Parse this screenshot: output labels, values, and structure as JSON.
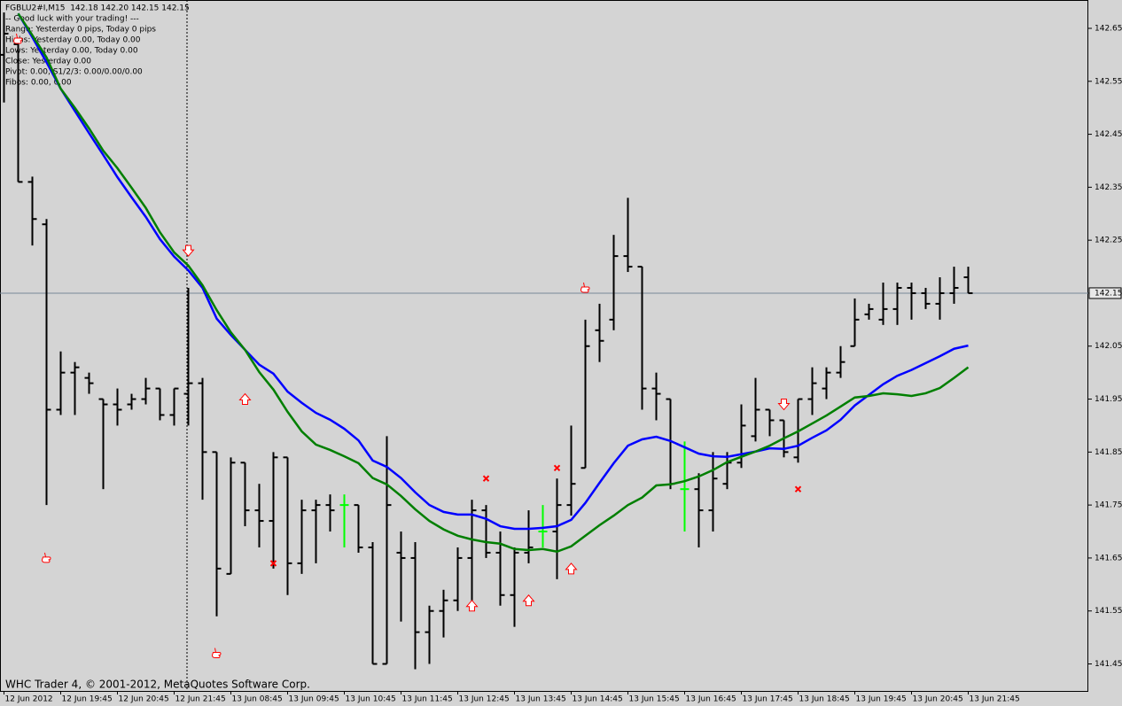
{
  "info_lines": [
    "FGBLU2#I,M15  142.18 142.20 142.15 142.15",
    "-- Good luck with your trading! ---",
    "Range: Yesterday 0 pips, Today 0 pips",
    "Highs: Yesterday 0.00, Today 0.00",
    "Lows: Yesterday 0.00, Today 0.00",
    "Close: Yesterday 0.00",
    "Pivot: 0.00, S1/2/3: 0.00/0.00/0.00",
    "Fibos: 0.00, 0.00"
  ],
  "footer": "WHC Trader 4, © 2001-2012, MetaQuotes Software Corp.",
  "chart_data": {
    "type": "ohlc",
    "categories": [
      "12 Jun 2012",
      null,
      null,
      null,
      "12 Jun 19:45",
      null,
      null,
      null,
      "12 Jun 20:45",
      null,
      null,
      null,
      "12 Jun 21:45",
      null,
      null,
      null,
      "13 Jun 08:45",
      null,
      null,
      null,
      "13 Jun 09:45",
      null,
      null,
      null,
      "13 Jun 10:45",
      null,
      null,
      null,
      "13 Jun 11:45",
      null,
      null,
      null,
      "13 Jun 12:45",
      null,
      null,
      null,
      "13 Jun 13:45",
      null,
      null,
      null,
      "13 Jun 14:45",
      null,
      null,
      null,
      "13 Jun 15:45",
      null,
      null,
      null,
      "13 Jun 16:45",
      null,
      null,
      null,
      "13 Jun 17:45",
      null,
      null,
      null,
      "13 Jun 18:45",
      null,
      null,
      null,
      "13 Jun 19:45",
      null,
      null,
      null,
      "13 Jun 20:45",
      null,
      null,
      null,
      "13 Jun 21:45"
    ],
    "open": [
      142.6,
      142.62,
      142.36,
      142.28,
      141.93,
      142.0,
      141.99,
      141.95,
      141.94,
      141.94,
      141.95,
      141.97,
      141.92,
      141.96,
      141.98,
      141.85,
      141.62,
      141.83,
      141.74,
      141.72,
      141.84,
      141.64,
      141.74,
      141.75,
      141.75,
      141.75,
      141.67,
      141.45,
      141.66,
      141.65,
      141.51,
      141.55,
      141.57,
      141.65,
      141.74,
      141.66,
      141.58,
      141.66,
      141.7,
      141.7,
      141.75,
      141.82,
      142.08,
      142.1,
      142.22,
      142.2,
      141.97,
      141.95,
      141.78,
      141.78,
      141.74,
      141.79,
      141.83,
      141.88,
      141.93,
      141.91,
      141.84,
      141.95,
      141.97,
      142.0,
      142.05,
      142.11,
      142.1,
      142.12,
      142.16,
      142.15,
      142.13,
      142.15,
      142.18
    ],
    "high": [
      142.68,
      142.63,
      142.37,
      142.29,
      142.04,
      142.02,
      142.0,
      141.95,
      141.97,
      141.96,
      141.99,
      141.97,
      141.97,
      142.16,
      141.99,
      141.85,
      141.84,
      141.83,
      141.79,
      141.85,
      141.84,
      141.76,
      141.76,
      141.77,
      141.77,
      141.75,
      141.68,
      141.88,
      141.7,
      141.68,
      141.56,
      141.59,
      141.67,
      141.76,
      141.75,
      141.7,
      141.67,
      141.74,
      141.75,
      141.8,
      141.9,
      142.1,
      142.13,
      142.26,
      142.33,
      142.2,
      142.0,
      141.95,
      141.87,
      141.81,
      141.85,
      141.85,
      141.94,
      141.99,
      141.93,
      141.91,
      141.95,
      142.01,
      142.01,
      142.05,
      142.14,
      142.13,
      142.17,
      142.17,
      142.17,
      142.16,
      142.18,
      142.2,
      142.2
    ],
    "low": [
      142.51,
      142.36,
      142.24,
      141.75,
      141.92,
      141.92,
      141.96,
      141.78,
      141.9,
      141.93,
      141.94,
      141.91,
      141.9,
      141.9,
      141.76,
      141.54,
      141.62,
      141.71,
      141.67,
      141.63,
      141.58,
      141.62,
      141.64,
      141.7,
      141.67,
      141.66,
      141.45,
      141.45,
      141.53,
      141.44,
      141.45,
      141.5,
      141.55,
      141.55,
      141.65,
      141.56,
      141.52,
      141.64,
      141.67,
      141.61,
      141.73,
      141.82,
      142.02,
      142.08,
      142.19,
      141.93,
      141.91,
      141.78,
      141.7,
      141.67,
      141.7,
      141.78,
      141.82,
      141.87,
      141.88,
      141.84,
      141.83,
      141.92,
      141.95,
      141.99,
      142.05,
      142.1,
      142.09,
      142.09,
      142.1,
      142.12,
      142.1,
      142.13,
      142.15
    ],
    "close": [
      142.64,
      142.36,
      142.29,
      141.93,
      142.0,
      142.01,
      141.98,
      141.94,
      141.93,
      141.95,
      141.97,
      141.92,
      141.97,
      141.98,
      141.85,
      141.63,
      141.83,
      141.74,
      141.72,
      141.84,
      141.64,
      141.74,
      141.75,
      141.74,
      141.75,
      141.67,
      141.45,
      141.75,
      141.65,
      141.51,
      141.55,
      141.57,
      141.65,
      141.74,
      141.66,
      141.58,
      141.66,
      141.67,
      141.7,
      141.75,
      141.79,
      142.05,
      142.06,
      142.22,
      142.2,
      141.97,
      141.96,
      141.79,
      141.78,
      141.74,
      141.8,
      141.83,
      141.9,
      141.93,
      141.91,
      141.85,
      141.95,
      141.98,
      142.0,
      142.02,
      142.1,
      142.12,
      142.12,
      142.16,
      142.15,
      142.13,
      142.15,
      142.16,
      142.15
    ],
    "bar_color": "#000000",
    "doji_color": "#00ff00",
    "series": [
      {
        "color": "#0000ff",
        "values": [
          null,
          142.678,
          142.633,
          142.586,
          142.536,
          142.494,
          142.452,
          142.411,
          142.369,
          142.331,
          142.294,
          142.252,
          142.219,
          142.193,
          142.16,
          142.102,
          142.071,
          142.043,
          142.015,
          141.998,
          141.964,
          141.943,
          141.924,
          141.911,
          141.894,
          141.872,
          141.834,
          141.822,
          141.801,
          141.774,
          141.75,
          141.737,
          141.732,
          141.732,
          141.724,
          141.71,
          141.705,
          141.705,
          141.707,
          141.71,
          141.722,
          141.754,
          141.792,
          141.829,
          141.862,
          141.874,
          141.879,
          141.871,
          141.859,
          141.847,
          141.842,
          141.841,
          141.846,
          141.851,
          141.857,
          141.856,
          141.862,
          141.877,
          141.891,
          141.911,
          141.938,
          141.958,
          141.978,
          141.994,
          142.005,
          142.018,
          142.031,
          142.045,
          142.051
        ]
      },
      {
        "color": "#007f00",
        "values": [
          null,
          142.678,
          142.637,
          142.595,
          142.536,
          142.5,
          142.461,
          142.419,
          142.386,
          142.349,
          142.311,
          142.265,
          142.227,
          142.202,
          142.165,
          142.118,
          142.076,
          142.043,
          142.001,
          141.968,
          141.926,
          141.889,
          141.864,
          141.854,
          141.842,
          141.829,
          141.801,
          141.789,
          141.767,
          141.742,
          141.72,
          141.704,
          141.692,
          141.685,
          141.68,
          141.677,
          141.667,
          141.665,
          141.667,
          141.662,
          141.672,
          141.692,
          141.712,
          141.73,
          141.75,
          141.764,
          141.787,
          141.789,
          141.795,
          141.804,
          141.816,
          141.831,
          141.841,
          141.851,
          141.862,
          141.876,
          141.889,
          141.904,
          141.919,
          141.936,
          141.953,
          141.956,
          141.961,
          141.959,
          141.956,
          141.961,
          141.971,
          141.99,
          142.01
        ]
      }
    ],
    "markers": [
      {
        "kind": "arrow-down",
        "color": "#ff0000",
        "values": [
          null,
          null,
          null,
          null,
          null,
          null,
          null,
          null,
          null,
          null,
          null,
          null,
          null,
          142.23,
          null,
          null,
          null,
          null,
          null,
          null,
          null,
          null,
          null,
          null,
          null,
          null,
          null,
          null,
          null,
          null,
          null,
          null,
          null,
          null,
          null,
          null,
          null,
          null,
          null,
          null,
          null,
          null,
          null,
          null,
          null,
          null,
          null,
          null,
          null,
          null,
          null,
          null,
          null,
          null,
          null,
          141.94,
          null,
          null,
          null,
          null,
          null,
          null,
          null,
          null,
          null,
          null,
          null,
          null,
          null
        ]
      },
      {
        "kind": "arrow-up",
        "color": "#ff0000",
        "values": [
          null,
          null,
          null,
          null,
          null,
          null,
          null,
          null,
          null,
          null,
          null,
          null,
          null,
          null,
          null,
          null,
          null,
          141.95,
          null,
          null,
          null,
          null,
          null,
          null,
          null,
          null,
          null,
          null,
          null,
          null,
          null,
          null,
          null,
          141.56,
          null,
          null,
          null,
          141.57,
          null,
          null,
          141.63,
          null,
          null,
          null,
          null,
          null,
          null,
          null,
          null,
          null,
          null,
          null,
          null,
          null,
          null,
          null,
          null,
          null,
          null,
          null,
          null,
          null,
          null,
          null,
          null,
          null,
          null,
          null,
          null
        ]
      },
      {
        "kind": "cross",
        "color": "#ff0000",
        "values": [
          null,
          null,
          null,
          null,
          null,
          null,
          null,
          null,
          null,
          null,
          null,
          null,
          null,
          null,
          null,
          null,
          null,
          null,
          null,
          141.64,
          null,
          null,
          null,
          null,
          null,
          null,
          null,
          null,
          null,
          null,
          null,
          null,
          null,
          null,
          141.8,
          null,
          null,
          null,
          null,
          141.82,
          null,
          null,
          null,
          null,
          null,
          null,
          null,
          null,
          null,
          null,
          null,
          null,
          null,
          null,
          null,
          null,
          141.78,
          null,
          null,
          null,
          null,
          null,
          null,
          null,
          null,
          null,
          null,
          null,
          null
        ]
      },
      {
        "kind": "hand",
        "color": "#ff0000",
        "values": [
          null,
          142.63,
          null,
          141.65,
          null,
          null,
          null,
          null,
          null,
          null,
          null,
          null,
          null,
          null,
          null,
          141.47,
          null,
          null,
          null,
          null,
          null,
          null,
          null,
          null,
          null,
          null,
          null,
          null,
          null,
          null,
          null,
          null,
          null,
          null,
          null,
          null,
          null,
          null,
          null,
          null,
          null,
          142.16,
          null,
          null,
          null,
          null,
          null,
          null,
          null,
          null,
          null,
          null,
          null,
          null,
          null,
          null,
          null,
          null,
          null,
          null,
          null,
          null,
          null,
          null,
          null,
          null,
          null,
          null,
          null
        ]
      }
    ],
    "last_price": 142.15,
    "last_price_color": "#778899",
    "ylim": [
      141.399,
      142.7035
    ],
    "yticks": [
      142.65,
      142.55,
      142.45,
      142.35,
      142.25,
      142.15,
      142.05,
      141.95,
      141.85,
      141.75,
      141.65,
      141.55,
      141.45
    ]
  }
}
